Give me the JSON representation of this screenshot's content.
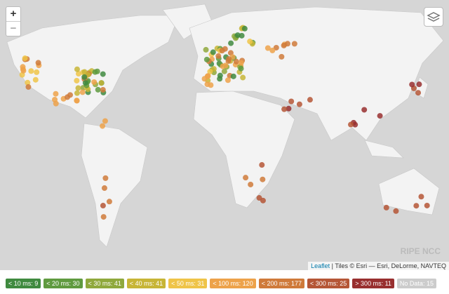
{
  "zoom": {
    "in": "+",
    "out": "−"
  },
  "watermark": "RIPE NCC",
  "attribution": {
    "link": "Leaflet",
    "text": " | Tiles © Esri — Esri, DeLorme, NAVTEQ"
  },
  "legend": [
    {
      "label": "< 10 ms: 9",
      "color": "#3f8a3f"
    },
    {
      "label": "< 20 ms: 30",
      "color": "#5f9a3f"
    },
    {
      "label": "< 30 ms: 41",
      "color": "#8fa83c"
    },
    {
      "label": "< 40 ms: 41",
      "color": "#c7b536"
    },
    {
      "label": "< 50 ms: 31",
      "color": "#efc448"
    },
    {
      "label": "< 100 ms: 120",
      "color": "#eda24a"
    },
    {
      "label": "< 200 ms: 177",
      "color": "#cf7a3a"
    },
    {
      "label": "< 300 ms: 25",
      "color": "#b55636"
    },
    {
      "label": "> 300 ms: 11",
      "color": "#982f2f"
    },
    {
      "label": "No Data: 15",
      "color": "#cccccc"
    }
  ]
}
